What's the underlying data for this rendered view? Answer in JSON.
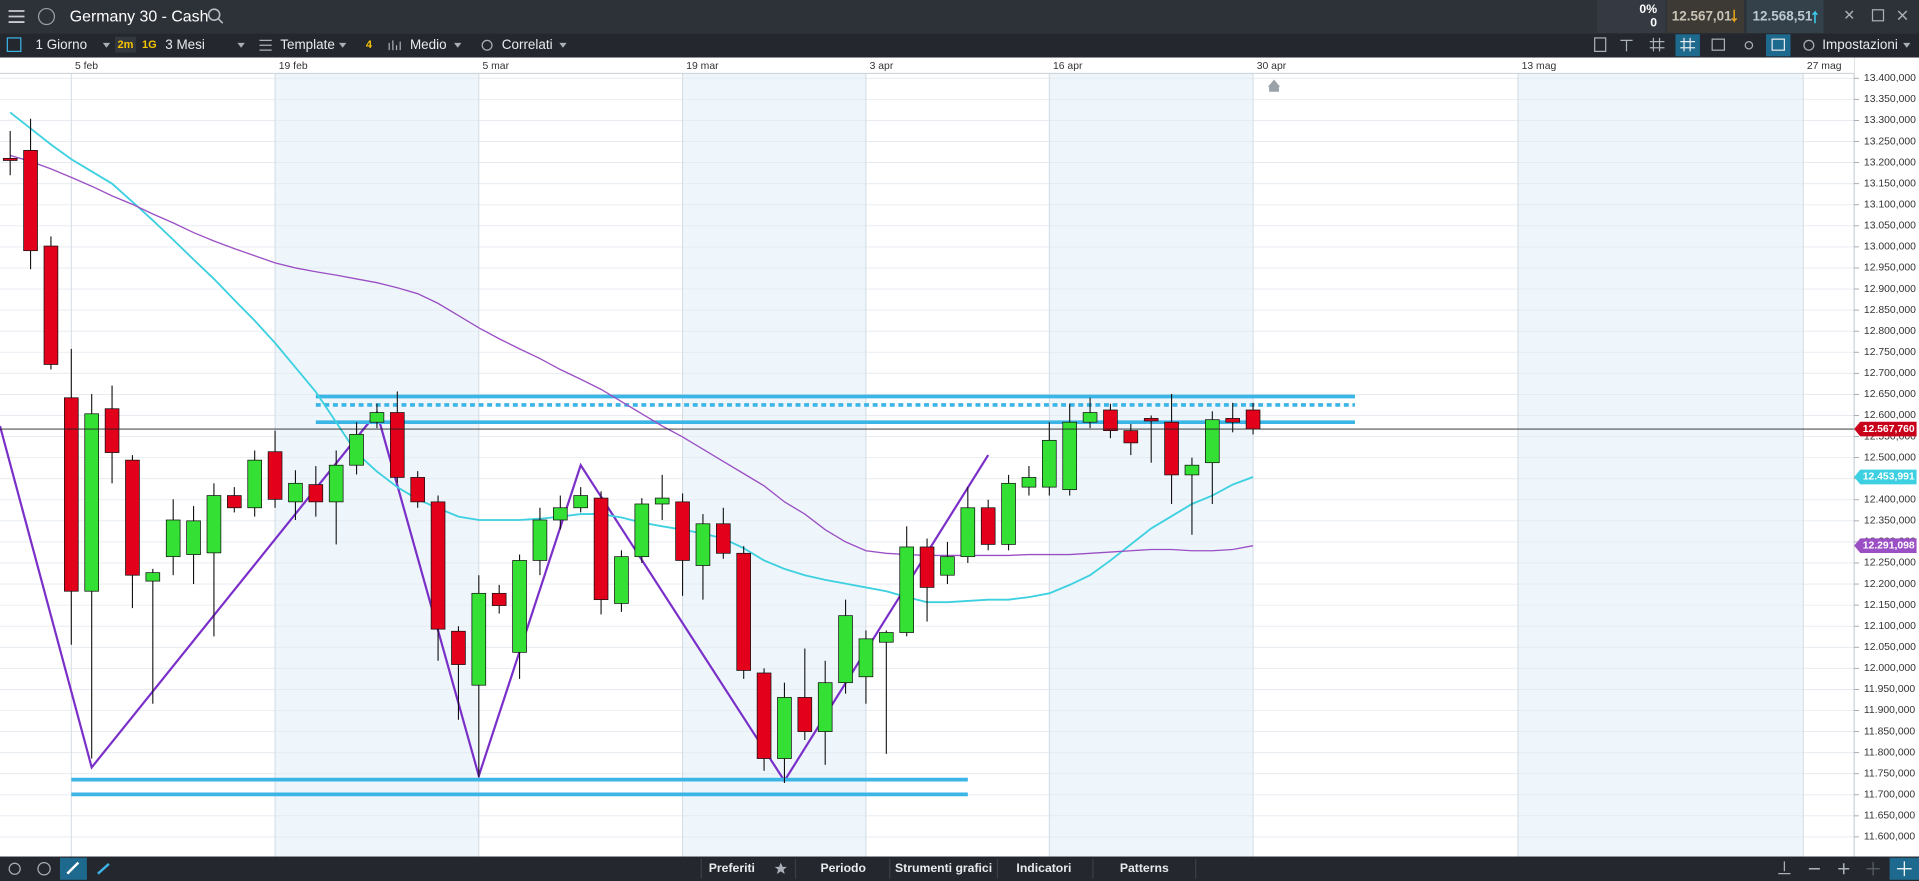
{
  "ui": {
    "title": "Germany 30 - Cash",
    "change_pct": "0%",
    "change": "0",
    "sell": "12.567,01",
    "buy": "12.568,51",
    "interval": "1 Giorno",
    "tag1": "2m",
    "tag2": "1G",
    "range": "3 Mesi",
    "template": "Template",
    "count": "4",
    "style": "Medio",
    "correlated": "Correlati",
    "settings": "Impostazioni",
    "tabs": [
      "Preferiti",
      "Periodo",
      "Strumenti grafici",
      "Indicatori",
      "Patterns"
    ]
  },
  "chart_data": {
    "type": "candlestick",
    "categories": [
      null,
      null,
      null,
      "5 feb",
      null,
      null,
      null,
      null,
      null,
      null,
      null,
      null,
      null,
      "19 feb",
      null,
      null,
      null,
      null,
      null,
      null,
      null,
      null,
      null,
      "5 mar",
      null,
      null,
      null,
      null,
      null,
      null,
      null,
      null,
      null,
      "19 mar",
      null,
      null,
      null,
      null,
      null,
      null,
      null,
      null,
      "3 apr",
      null,
      null,
      null,
      null,
      null,
      null,
      null,
      null,
      "16 apr",
      null,
      null,
      null,
      null,
      null,
      null,
      null,
      null,
      null,
      "30 apr",
      null,
      null,
      null,
      null,
      null,
      null,
      null,
      null,
      null,
      null,
      null,
      null,
      "13 mag",
      null,
      null,
      null,
      null,
      null,
      null,
      null,
      null,
      null,
      null,
      null,
      null,
      null,
      "27 mag",
      null,
      null
    ],
    "open": [
      13210,
      13229,
      13002,
      12642,
      12183,
      12616,
      12494,
      12207,
      12265,
      12270,
      12274,
      12410,
      12381,
      12514,
      12395,
      12436,
      12395,
      12482,
      12584,
      12607,
      12453,
      12395,
      12088,
      11960,
      12178,
      12038,
      12256,
      12352,
      12381,
      12404,
      12154,
      12265,
      12390,
      12395,
      12244,
      12343,
      12273,
      11989,
      11786,
      11931,
      11850,
      11966,
      11980,
      12062,
      12085,
      12288,
      12221,
      12265,
      12381,
      12294,
      12430,
      12430,
      12424,
      12584,
      12613,
      12564,
      12593,
      12584,
      12459,
      12488,
      12593,
      12613,
      null,
      null,
      null,
      null,
      null,
      null,
      null,
      null,
      null,
      null,
      null,
      null,
      null,
      null,
      null,
      null,
      null,
      null,
      null,
      null,
      null,
      null,
      null,
      null,
      null,
      null,
      null,
      null,
      null
    ],
    "high": [
      13275,
      13304,
      13025,
      12758,
      12651,
      12671,
      12506,
      12236,
      12401,
      12385,
      12439,
      12430,
      12517,
      12564,
      12470,
      12480,
      12517,
      12584,
      12628,
      12657,
      12468,
      12410,
      12100,
      12221,
      12198,
      12270,
      12381,
      12410,
      12430,
      12420,
      12280,
      12404,
      12459,
      12415,
      12366,
      12381,
      12290,
      12000,
      11966,
      12047,
      12018,
      12163,
      12090,
      12090,
      12337,
      12308,
      12300,
      12430,
      12400,
      12459,
      12480,
      12584,
      12628,
      12642,
      12628,
      12580,
      12600,
      12651,
      12500,
      12610,
      12630,
      12630,
      null,
      null,
      null,
      null,
      null,
      null,
      null,
      null,
      null,
      null,
      null,
      null,
      null,
      null,
      null,
      null,
      null,
      null,
      null,
      null,
      null,
      null,
      null,
      null,
      null,
      null,
      null,
      null,
      null
    ],
    "low": [
      13170,
      12947,
      12709,
      12056,
      11786,
      12439,
      12143,
      11916,
      12221,
      12200,
      12076,
      12370,
      12360,
      12381,
      12352,
      12360,
      12294,
      12460,
      12570,
      12440,
      12381,
      12018,
      11878,
      11742,
      12130,
      11975,
      12221,
      12330,
      12370,
      12128,
      12134,
      12250,
      12352,
      12172,
      12163,
      12260,
      11975,
      11757,
      11728,
      11830,
      11771,
      11940,
      11916,
      11797,
      12076,
      12111,
      12200,
      12250,
      12280,
      12280,
      12410,
      12410,
      12410,
      12570,
      12546,
      12506,
      12488,
      12390,
      12317,
      12390,
      12560,
      12555,
      null,
      null,
      null,
      null,
      null,
      null,
      null,
      null,
      null,
      null,
      null,
      null,
      null,
      null,
      null,
      null,
      null,
      null,
      null,
      null,
      null,
      null,
      null,
      null,
      null,
      null,
      null,
      null,
      null
    ],
    "close": [
      13205,
      12991,
      12721,
      12183,
      12604,
      12512,
      12221,
      12227,
      12352,
      12350,
      12410,
      12381,
      12494,
      12401,
      12439,
      12395,
      12482,
      12555,
      12607,
      12453,
      12395,
      12093,
      12009,
      12178,
      12149,
      12256,
      12352,
      12381,
      12410,
      12163,
      12265,
      12390,
      12404,
      12256,
      12343,
      12273,
      11995,
      11786,
      11931,
      11850,
      11966,
      12125,
      12070,
      12085,
      12288,
      12192,
      12265,
      12381,
      12294,
      12439,
      12453,
      12541,
      12584,
      12607,
      12564,
      12535,
      12587,
      12459,
      12482,
      12590,
      12584,
      12567.76,
      null,
      null,
      null,
      null,
      null,
      null,
      null,
      null,
      null,
      null,
      null,
      null,
      null,
      null,
      null,
      null,
      null,
      null,
      null,
      null,
      null,
      null,
      null,
      null,
      null,
      null,
      null,
      null,
      null
    ],
    "up_color": "#35e035",
    "down_color": "#e3001b",
    "series": [
      {
        "color": "#3dd0e0",
        "last_label": "12.453,991",
        "values": [
          13319,
          13281,
          13243,
          13208,
          13179,
          13150,
          13107,
          13063,
          13017,
          12970,
          12924,
          12874,
          12825,
          12772,
          12714,
          12656,
          12584,
          12511,
          12467,
          12430,
          12401,
          12380,
          12360,
          12352,
          12352,
          12352,
          12355,
          12360,
          12366,
          12366,
          12358,
          12346,
          12337,
          12329,
          12320,
          12308,
          12285,
          12256,
          12236,
          12221,
          12210,
          12201,
          12192,
          12183,
          12169,
          12157,
          12157,
          12160,
          12163,
          12163,
          12169,
          12178,
          12198,
          12221,
          12256,
          12294,
          12332,
          12361,
          12390,
          12410,
          12436,
          12453.991,
          null,
          null,
          null,
          null,
          null,
          null,
          null,
          null,
          null,
          null,
          null,
          null,
          null,
          null,
          null,
          null,
          null,
          null,
          null,
          null,
          null,
          null,
          null,
          null,
          null,
          null,
          null,
          null,
          null
        ]
      },
      {
        "color": "#9b4fc4",
        "last_label": "12.291,098",
        "values": [
          13217,
          13203,
          13185,
          13165,
          13144,
          13121,
          13101,
          13078,
          13057,
          13034,
          13014,
          12996,
          12979,
          12962,
          12950,
          12941,
          12933,
          12924,
          12915,
          12903,
          12889,
          12866,
          12837,
          12808,
          12782,
          12758,
          12735,
          12709,
          12686,
          12662,
          12633,
          12604,
          12575,
          12549,
          12520,
          12491,
          12462,
          12433,
          12395,
          12366,
          12329,
          12300,
          12279,
          12273,
          12270,
          12268,
          12268,
          12268,
          12268,
          12268,
          12270,
          12270,
          12270,
          12273,
          12276,
          12279,
          12282,
          12282,
          12279,
          12279,
          12282,
          12291.098,
          null,
          null,
          null,
          null,
          null,
          null,
          null,
          null,
          null,
          null,
          null,
          null,
          null,
          null,
          null,
          null,
          null,
          null,
          null,
          null,
          null,
          null,
          null,
          null,
          null,
          null,
          null,
          null,
          null
        ]
      }
    ],
    "last_price": {
      "value": 12567.76,
      "label": "12.567,760",
      "color": "#c8001a"
    },
    "drawings": [
      {
        "type": "polyline",
        "color": "#7b2fc9",
        "x": [
          -0.5,
          4,
          18,
          23,
          28,
          38,
          48
        ],
        "y": [
          12575,
          11765,
          12607,
          11745,
          12482,
          11733,
          12506
        ]
      },
      {
        "type": "hline",
        "color": "#3bb4e6",
        "x": [
          15,
          66
        ],
        "y": 12645
      },
      {
        "type": "hline",
        "color": "#3bb4e6",
        "dashed": true,
        "x": [
          15,
          66
        ],
        "y": 12625
      },
      {
        "type": "hline",
        "color": "#3bb4e6",
        "x": [
          15,
          66
        ],
        "y": 12584
      },
      {
        "type": "hline",
        "color": "#3bb4e6",
        "x": [
          3,
          47
        ],
        "y": 11736
      },
      {
        "type": "hline",
        "color": "#3bb4e6",
        "x": [
          3,
          47
        ],
        "y": 11701
      }
    ],
    "ylim": [
      11553.5,
      13411.6
    ],
    "yticks": [
      {
        "value": 11600,
        "label": "11.600,000"
      },
      {
        "value": 11650,
        "label": "11.650,000"
      },
      {
        "value": 11700,
        "label": "11.700,000"
      },
      {
        "value": 11750,
        "label": "11.750,000"
      },
      {
        "value": 11800,
        "label": "11.800,000"
      },
      {
        "value": 11850,
        "label": "11.850,000"
      },
      {
        "value": 11900,
        "label": "11.900,000"
      },
      {
        "value": 11950,
        "label": "11.950,000"
      },
      {
        "value": 12000,
        "label": "12.000,000"
      },
      {
        "value": 12050,
        "label": "12.050,000"
      },
      {
        "value": 12100,
        "label": "12.100,000"
      },
      {
        "value": 12150,
        "label": "12.150,000"
      },
      {
        "value": 12200,
        "label": "12.200,000"
      },
      {
        "value": 12250,
        "label": "12.250,000"
      },
      {
        "value": 12300,
        "label": "12.300,000"
      },
      {
        "value": 12350,
        "label": "12.350,000"
      },
      {
        "value": 12400,
        "label": "12.400,000"
      },
      {
        "value": 12450,
        "label": "12.450,000"
      },
      {
        "value": 12500,
        "label": "12.500,000"
      },
      {
        "value": 12550,
        "label": "12.550,000"
      },
      {
        "value": 12600,
        "label": "12.600,000"
      },
      {
        "value": 12650,
        "label": "12.650,000"
      },
      {
        "value": 12700,
        "label": "12.700,000"
      },
      {
        "value": 12750,
        "label": "12.750,000"
      },
      {
        "value": 12800,
        "label": "12.800,000"
      },
      {
        "value": 12850,
        "label": "12.850,000"
      },
      {
        "value": 12900,
        "label": "12.900,000"
      },
      {
        "value": 12950,
        "label": "12.950,000"
      },
      {
        "value": 13000,
        "label": "13.000,000"
      },
      {
        "value": 13050,
        "label": "13.050,000"
      },
      {
        "value": 13100,
        "label": "13.100,000"
      },
      {
        "value": 13150,
        "label": "13.150,000"
      },
      {
        "value": 13200,
        "label": "13.200,000"
      },
      {
        "value": 13250,
        "label": "13.250,000"
      },
      {
        "value": 13300,
        "label": "13.300,000"
      },
      {
        "value": 13350,
        "label": "13.350,000"
      },
      {
        "value": 13400,
        "label": "13.400,000"
      }
    ],
    "grid": true
  }
}
